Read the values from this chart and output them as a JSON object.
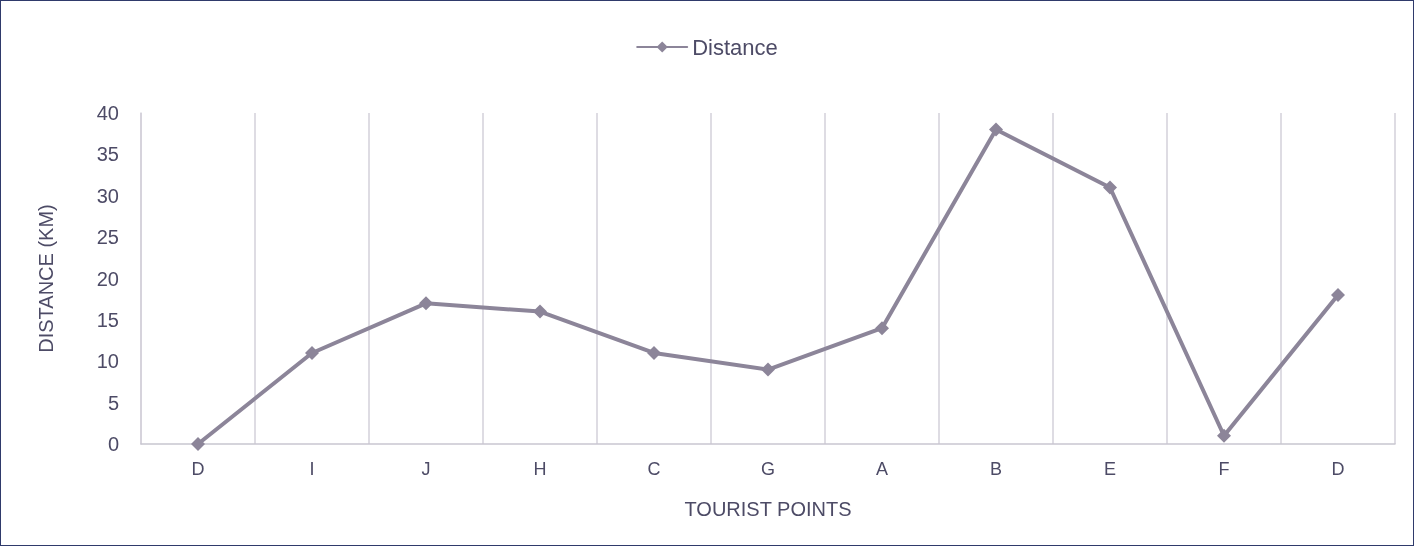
{
  "chart_data": {
    "type": "line",
    "xlabel": "TOURIST POINTS",
    "ylabel": "DISTANCE (KM)",
    "categories": [
      "D",
      "I",
      "J",
      "H",
      "C",
      "G",
      "A",
      "B",
      "E",
      "F",
      "D"
    ],
    "series": [
      {
        "name": "Distance",
        "color": "#8c8599",
        "values": [
          0,
          11,
          17,
          16,
          11,
          9,
          14,
          38,
          31,
          1,
          18
        ]
      }
    ],
    "ylim": [
      0,
      40
    ],
    "yticks": [
      0,
      5,
      10,
      15,
      20,
      25,
      30,
      35,
      40
    ],
    "grid": "x",
    "legend": "top",
    "marker": "diamond",
    "line_style": "solid"
  }
}
